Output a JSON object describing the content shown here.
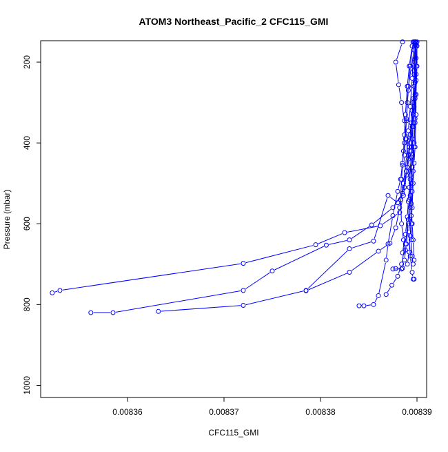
{
  "chart_data": {
    "type": "line",
    "title": "ATOM3 Northeast_Pacific_2 CFC115_GMI",
    "xlabel": "CFC115_GMI",
    "ylabel": "Pressure (mbar)",
    "y_inverted": true,
    "xlim": [
      0.008351,
      0.008391
    ],
    "ylim": [
      1030,
      147
    ],
    "x_ticks": [
      {
        "value": 0.00836,
        "label": "0.00836"
      },
      {
        "value": 0.00837,
        "label": "0.00837"
      },
      {
        "value": 0.00838,
        "label": "0.00838"
      },
      {
        "value": 0.00839,
        "label": "0.00839"
      }
    ],
    "y_ticks": [
      {
        "value": 200,
        "label": "200"
      },
      {
        "value": 400,
        "label": "400"
      },
      {
        "value": 600,
        "label": "600"
      },
      {
        "value": 800,
        "label": "800"
      },
      {
        "value": 1000,
        "label": "1000"
      }
    ],
    "series_color": "#0000ff",
    "marker": "open-circle",
    "series": [
      {
        "points": [
          [
            0.0083899,
            150
          ],
          [
            0.0083898,
            200
          ],
          [
            0.0083897,
            260
          ],
          [
            0.0083895,
            320
          ],
          [
            0.0083893,
            380
          ],
          [
            0.0083891,
            430
          ],
          [
            0.0083889,
            480
          ],
          [
            0.0083886,
            530
          ],
          [
            0.0083882,
            572
          ],
          [
            0.0083862,
            605
          ],
          [
            0.0083825,
            622
          ],
          [
            0.0083795,
            652
          ],
          [
            0.008372,
            698
          ],
          [
            0.008353,
            765
          ],
          [
            0.0083522,
            771
          ]
        ]
      },
      {
        "points": [
          [
            0.0083898,
            155
          ],
          [
            0.0083897,
            220
          ],
          [
            0.0083896,
            290
          ],
          [
            0.0083894,
            350
          ],
          [
            0.0083892,
            410
          ],
          [
            0.0083889,
            470
          ],
          [
            0.0083885,
            525
          ],
          [
            0.0083875,
            560
          ],
          [
            0.0083853,
            603
          ],
          [
            0.008383,
            640
          ],
          [
            0.0083806,
            653
          ],
          [
            0.008375,
            717
          ],
          [
            0.008372,
            765
          ],
          [
            0.0083585,
            820
          ],
          [
            0.0083562,
            820
          ]
        ]
      },
      {
        "points": [
          [
            0.0083899,
            152
          ],
          [
            0.0083898,
            250
          ],
          [
            0.0083896,
            330
          ],
          [
            0.0083893,
            400
          ],
          [
            0.008389,
            460
          ],
          [
            0.0083887,
            510
          ],
          [
            0.008388,
            548
          ],
          [
            0.008387,
            530
          ],
          [
            0.0083855,
            643
          ],
          [
            0.008383,
            662
          ],
          [
            0.0083785,
            765
          ],
          [
            0.008372,
            802
          ],
          [
            0.0083632,
            817
          ]
        ]
      },
      {
        "points": [
          [
            0.0083897,
            150
          ],
          [
            0.0083895,
            240
          ],
          [
            0.0083893,
            310
          ],
          [
            0.0083891,
            370
          ],
          [
            0.0083889,
            440
          ],
          [
            0.0083886,
            500
          ],
          [
            0.0083882,
            560
          ],
          [
            0.0083878,
            610
          ],
          [
            0.0083872,
            648
          ],
          [
            0.008386,
            668
          ],
          [
            0.008383,
            720
          ],
          [
            0.0083785,
            766
          ]
        ]
      },
      {
        "points": [
          [
            0.0083896,
            150
          ],
          [
            0.0083893,
            210
          ],
          [
            0.0083891,
            270
          ],
          [
            0.0083889,
            340
          ],
          [
            0.0083887,
            400
          ],
          [
            0.0083885,
            450
          ],
          [
            0.0083883,
            490
          ],
          [
            0.008388,
            520
          ],
          [
            0.0083875,
            580
          ],
          [
            0.008387,
            650
          ],
          [
            0.0083868,
            690
          ],
          [
            0.008386,
            778
          ],
          [
            0.0083855,
            800
          ],
          [
            0.0083845,
            803
          ],
          [
            0.008384,
            803
          ]
        ]
      },
      {
        "points": [
          [
            0.0083899,
            160
          ],
          [
            0.0083899,
            210
          ],
          [
            0.0083898,
            280
          ],
          [
            0.0083898,
            350
          ],
          [
            0.0083897,
            410
          ],
          [
            0.0083896,
            470
          ],
          [
            0.0083895,
            520
          ],
          [
            0.0083894,
            580
          ],
          [
            0.0083893,
            630
          ],
          [
            0.0083892,
            670
          ],
          [
            0.008389,
            700
          ],
          [
            0.0083885,
            710
          ],
          [
            0.0083878,
            711
          ]
        ]
      },
      {
        "points": [
          [
            0.0083898,
            158
          ],
          [
            0.0083897,
            230
          ],
          [
            0.0083896,
            300
          ],
          [
            0.0083895,
            360
          ],
          [
            0.0083894,
            420
          ],
          [
            0.0083893,
            480
          ],
          [
            0.0083892,
            540
          ],
          [
            0.0083891,
            600
          ],
          [
            0.0083889,
            650
          ],
          [
            0.0083887,
            690
          ],
          [
            0.0083884,
            712
          ],
          [
            0.0083875,
            712
          ]
        ]
      },
      {
        "points": [
          [
            0.00839,
            160
          ],
          [
            0.0083899,
            230
          ],
          [
            0.0083898,
            290
          ],
          [
            0.0083896,
            360
          ],
          [
            0.0083895,
            430
          ],
          [
            0.0083894,
            500
          ],
          [
            0.0083893,
            560
          ],
          [
            0.0083892,
            620
          ],
          [
            0.0083893,
            680
          ],
          [
            0.0083895,
            720
          ],
          [
            0.0083896,
            737
          ],
          [
            0.0083897,
            737
          ]
        ]
      },
      {
        "points": [
          [
            0.00839,
            150
          ],
          [
            0.00839,
            210
          ],
          [
            0.0083899,
            280
          ],
          [
            0.0083898,
            340
          ],
          [
            0.0083897,
            400
          ],
          [
            0.0083895,
            460
          ],
          [
            0.0083893,
            530
          ],
          [
            0.0083891,
            590
          ],
          [
            0.0083888,
            650
          ],
          [
            0.0083884,
            700
          ],
          [
            0.008388,
            730
          ],
          [
            0.0083874,
            752
          ],
          [
            0.0083868,
            775
          ]
        ]
      },
      {
        "points": [
          [
            0.0083895,
            160
          ],
          [
            0.0083892,
            210
          ],
          [
            0.008389,
            260
          ],
          [
            0.0083888,
            330
          ],
          [
            0.0083887,
            380
          ],
          [
            0.0083886,
            420
          ],
          [
            0.0083885,
            455
          ],
          [
            0.0083884,
            490
          ],
          [
            0.0083883,
            540
          ],
          [
            0.0083884,
            600
          ],
          [
            0.0083886,
            640
          ],
          [
            0.0083888,
            665
          ]
        ]
      },
      {
        "points": [
          [
            0.0083898,
            150
          ],
          [
            0.0083897,
            170
          ],
          [
            0.0083894,
            215
          ],
          [
            0.0083891,
            260
          ],
          [
            0.008389,
            300
          ],
          [
            0.0083889,
            345
          ],
          [
            0.0083888,
            390
          ],
          [
            0.0083887,
            430
          ]
        ]
      },
      {
        "points": [
          [
            0.0083885,
            150
          ],
          [
            0.0083878,
            200
          ],
          [
            0.0083881,
            256
          ],
          [
            0.0083884,
            300
          ],
          [
            0.0083887,
            345
          ],
          [
            0.0083889,
            390
          ],
          [
            0.0083891,
            440
          ],
          [
            0.0083893,
            490
          ],
          [
            0.0083894,
            550
          ],
          [
            0.0083895,
            600
          ],
          [
            0.0083896,
            640
          ],
          [
            0.0083897,
            690
          ]
        ]
      },
      {
        "points": [
          [
            0.0083899,
            152
          ],
          [
            0.0083899,
            190
          ],
          [
            0.0083898,
            250
          ],
          [
            0.0083897,
            310
          ],
          [
            0.0083896,
            350
          ],
          [
            0.0083895,
            390
          ],
          [
            0.0083894,
            435
          ],
          [
            0.0083893,
            470
          ],
          [
            0.0083892,
            510
          ],
          [
            0.0083891,
            545
          ],
          [
            0.008389,
            583
          ],
          [
            0.0083888,
            626
          ],
          [
            0.0083885,
            672
          ]
        ]
      },
      {
        "points": [
          [
            0.0083898,
            150
          ],
          [
            0.0083899,
            245
          ],
          [
            0.0083899,
            330
          ],
          [
            0.0083898,
            410
          ],
          [
            0.0083897,
            450
          ],
          [
            0.0083896,
            500
          ],
          [
            0.0083895,
            560
          ],
          [
            0.0083894,
            600
          ],
          [
            0.0083894,
            640
          ],
          [
            0.0083895,
            680
          ],
          [
            0.0083896,
            700
          ]
        ]
      }
    ]
  }
}
